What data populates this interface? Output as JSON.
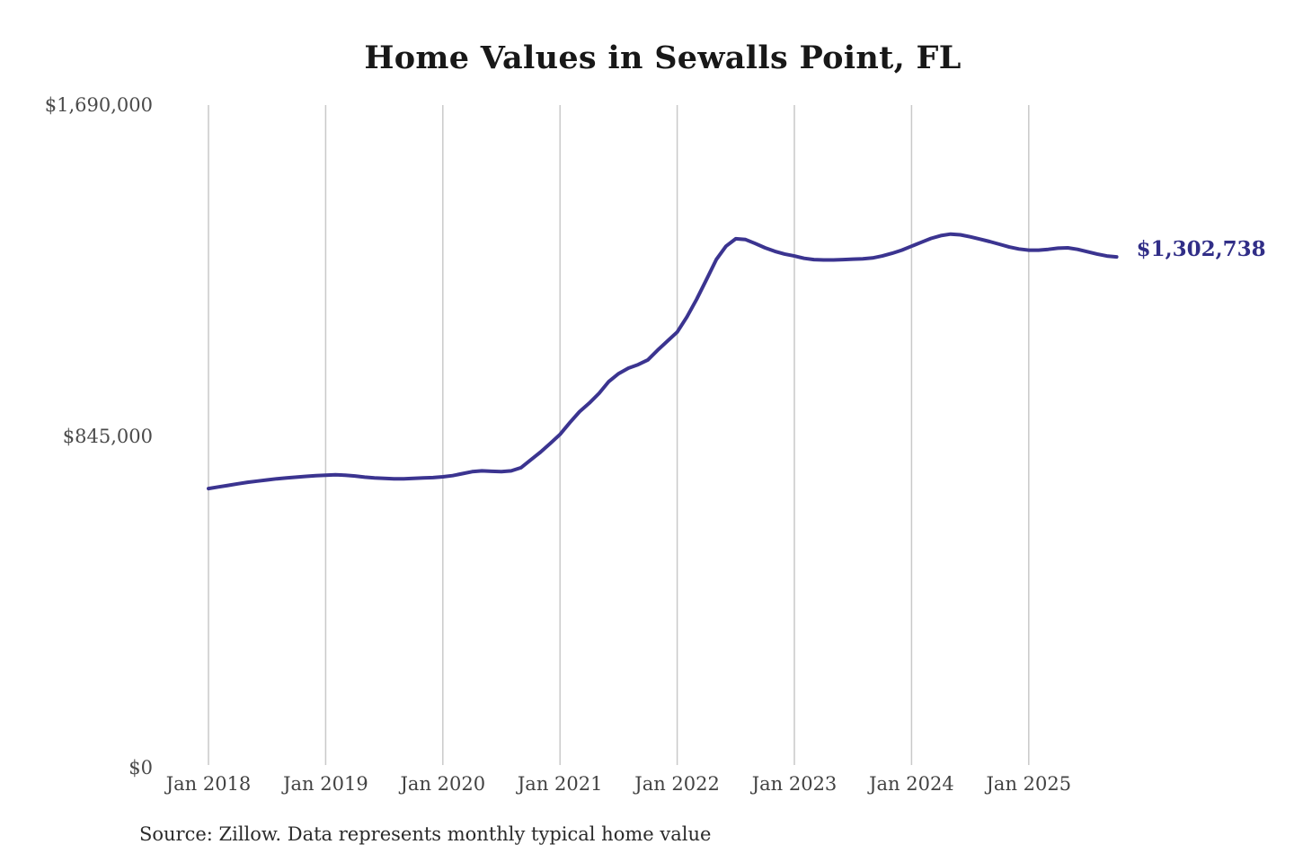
{
  "title": "Home Values in Sewalls Point, FL",
  "source_note": "Source: Zillow. Data represents monthly typical home value",
  "colors": {
    "line": "#3B3490",
    "end_label": "#312E87",
    "grid": "#C9C9C9",
    "axis_text_y": "#4A4A4A",
    "axis_text_x": "#424242",
    "title_text": "#181818",
    "source_text": "#2B2B2B",
    "background": "#FFFFFF"
  },
  "chart_data": {
    "type": "line",
    "title": "Home Values in Sewalls Point, FL",
    "series_name": "Monthly typical home value",
    "unit": "USD",
    "grid": "vertical",
    "legend": "none",
    "ylim": [
      0,
      1690000
    ],
    "y_ticks": [
      {
        "value": 0,
        "label": "$0"
      },
      {
        "value": 845000,
        "label": "$845,000"
      },
      {
        "value": 1690000,
        "label": "$1,690,000"
      }
    ],
    "x_ticks": [
      {
        "month": "2018-01",
        "label": "Jan 2018"
      },
      {
        "month": "2019-01",
        "label": "Jan 2019"
      },
      {
        "month": "2020-01",
        "label": "Jan 2020"
      },
      {
        "month": "2021-01",
        "label": "Jan 2021"
      },
      {
        "month": "2022-01",
        "label": "Jan 2022"
      },
      {
        "month": "2023-01",
        "label": "Jan 2023"
      },
      {
        "month": "2024-01",
        "label": "Jan 2024"
      },
      {
        "month": "2025-01",
        "label": "Jan 2025"
      }
    ],
    "x": [
      "2018-01",
      "2018-02",
      "2018-03",
      "2018-04",
      "2018-05",
      "2018-06",
      "2018-07",
      "2018-08",
      "2018-09",
      "2018-10",
      "2018-11",
      "2018-12",
      "2019-01",
      "2019-02",
      "2019-03",
      "2019-04",
      "2019-05",
      "2019-06",
      "2019-07",
      "2019-08",
      "2019-09",
      "2019-10",
      "2019-11",
      "2019-12",
      "2020-01",
      "2020-02",
      "2020-03",
      "2020-04",
      "2020-05",
      "2020-06",
      "2020-07",
      "2020-08",
      "2020-09",
      "2020-10",
      "2020-11",
      "2020-12",
      "2021-01",
      "2021-02",
      "2021-03",
      "2021-04",
      "2021-05",
      "2021-06",
      "2021-07",
      "2021-08",
      "2021-09",
      "2021-10",
      "2021-11",
      "2021-12",
      "2022-01",
      "2022-02",
      "2022-03",
      "2022-04",
      "2022-05",
      "2022-06",
      "2022-07",
      "2022-08",
      "2022-09",
      "2022-10",
      "2022-11",
      "2022-12",
      "2023-01",
      "2023-02",
      "2023-03",
      "2023-04",
      "2023-05",
      "2023-06",
      "2023-07",
      "2023-08",
      "2023-09",
      "2023-10",
      "2023-11",
      "2023-12",
      "2024-01",
      "2024-02",
      "2024-03",
      "2024-04",
      "2024-05",
      "2024-06",
      "2024-07",
      "2024-08",
      "2024-09",
      "2024-10",
      "2024-11",
      "2024-12",
      "2025-01",
      "2025-02",
      "2025-03",
      "2025-04",
      "2025-05",
      "2025-06",
      "2025-07",
      "2025-08",
      "2025-09",
      "2025-10"
    ],
    "values": [
      712000,
      716000,
      720000,
      724000,
      728000,
      731000,
      734000,
      737000,
      739000,
      741000,
      743000,
      745000,
      746000,
      747000,
      746000,
      744000,
      741000,
      739000,
      738000,
      737000,
      737000,
      738000,
      739000,
      740000,
      742000,
      745000,
      750000,
      755000,
      757000,
      756000,
      755000,
      757000,
      765000,
      785000,
      805000,
      827000,
      850000,
      880000,
      908000,
      930000,
      955000,
      985000,
      1005000,
      1019000,
      1028000,
      1040000,
      1065000,
      1088000,
      1111000,
      1150000,
      1195000,
      1245000,
      1296000,
      1330000,
      1349000,
      1347000,
      1337000,
      1326000,
      1317000,
      1310000,
      1305000,
      1299000,
      1296000,
      1295000,
      1295000,
      1296000,
      1297000,
      1298000,
      1300000,
      1305000,
      1312000,
      1320000,
      1330000,
      1340000,
      1350000,
      1357000,
      1361000,
      1359000,
      1354000,
      1348000,
      1342000,
      1335000,
      1328000,
      1323000,
      1320000,
      1320000,
      1322000,
      1325000,
      1326000,
      1322000,
      1316000,
      1310000,
      1305000,
      1302738
    ],
    "last_value": 1302738,
    "last_value_label": "$1,302,738",
    "source": "Zillow"
  }
}
